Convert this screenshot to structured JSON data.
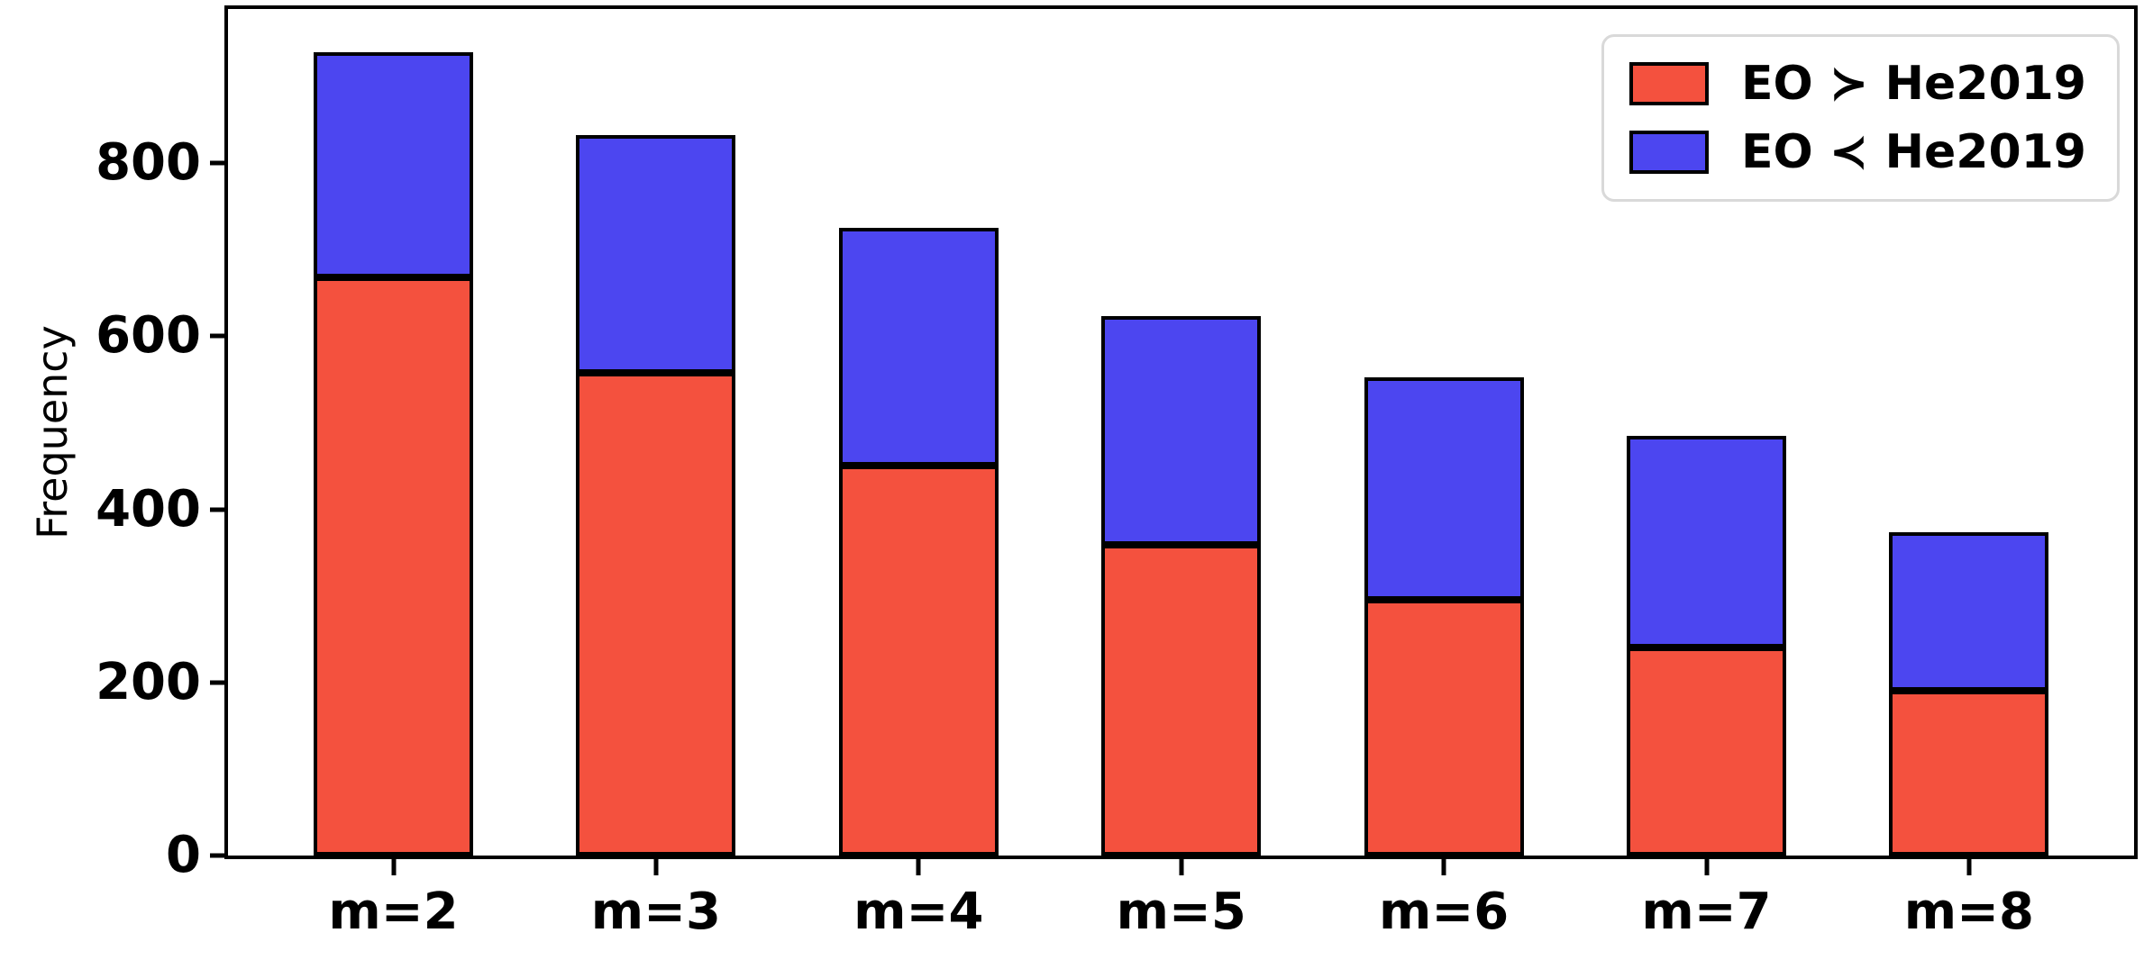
{
  "chart_data": {
    "type": "bar",
    "stacked": true,
    "title": "",
    "xlabel": "",
    "ylabel": "Frequency",
    "categories": [
      "m=2",
      "m=3",
      "m=4",
      "m=5",
      "m=6",
      "m=7",
      "m=8"
    ],
    "series": [
      {
        "name": "EO ≻ He2019",
        "color": "#f4513e",
        "edge_color": "#000000",
        "values": [
          668,
          558,
          450,
          359,
          296,
          240,
          190
        ]
      },
      {
        "name": "EO ≺ He2019",
        "color": "#4c46f0",
        "edge_color": "#000000",
        "values": [
          260,
          275,
          275,
          264,
          257,
          245,
          183
        ]
      }
    ],
    "totals": [
      928,
      833,
      725,
      623,
      553,
      485,
      373
    ],
    "yticks": [
      0,
      200,
      400,
      600,
      800
    ],
    "ylim": [
      0,
      978
    ],
    "grid": false,
    "legend_position": "upper right",
    "plot_border_color": "#000000",
    "background_color": "#ffffff"
  }
}
